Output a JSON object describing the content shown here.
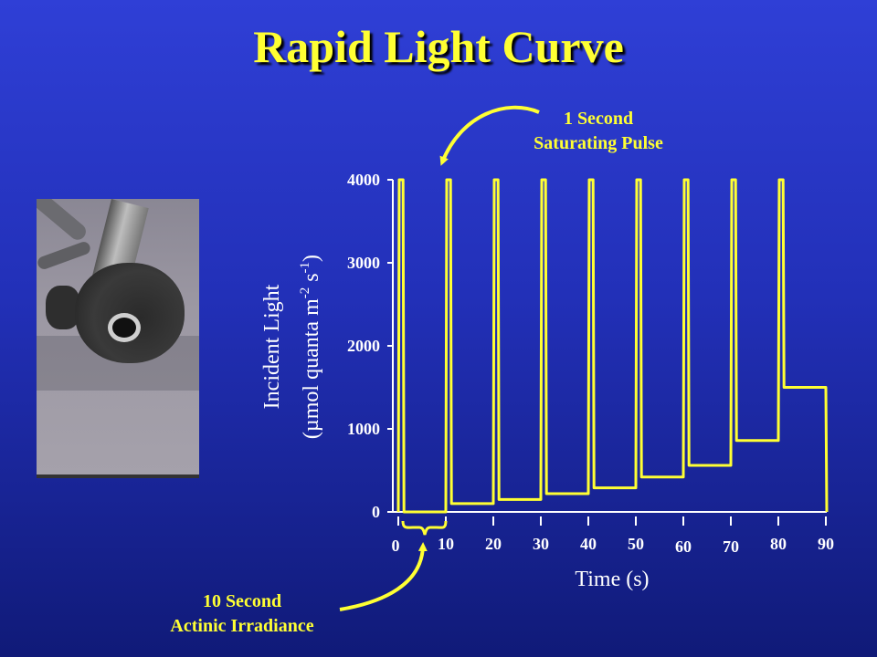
{
  "slide": {
    "title": "Rapid Light Curve",
    "photo_alt": "photo"
  },
  "chart_data": {
    "type": "line",
    "title": "",
    "xlabel": "Time (s)",
    "ylabel_line1": "Incident Light",
    "ylabel_line2": "(µmol quanta m",
    "ylabel_sup1": "-2",
    "ylabel_mid": " s",
    "ylabel_sup2": "-1",
    "ylabel_end": ")",
    "xlim": [
      0,
      90
    ],
    "ylim": [
      0,
      4000
    ],
    "y_ticks": [
      0,
      1000,
      2000,
      3000,
      4000
    ],
    "y_tick_labels": [
      "0",
      "1000",
      "2000",
      "3000",
      "4000"
    ],
    "x_tick_labels": [
      "0",
      "10",
      "20",
      "30",
      "40",
      "50",
      "60",
      "70",
      "80",
      "90"
    ],
    "series": [
      {
        "color": "#ffff33",
        "x": [
          0,
          0.2,
          1,
          1.2,
          10,
          10.2,
          11,
          11.2,
          20,
          20.2,
          21,
          21.2,
          30,
          30.2,
          31,
          31.2,
          40,
          40.2,
          41,
          41.2,
          50,
          50.2,
          51,
          51.2,
          60,
          60.2,
          61,
          61.2,
          70,
          70.2,
          71,
          71.2,
          80,
          80.2,
          81,
          81.2,
          90,
          90.2
        ],
        "y": [
          0,
          4000,
          4000,
          0,
          0,
          4000,
          4000,
          100,
          100,
          4000,
          4000,
          150,
          150,
          4000,
          4000,
          220,
          220,
          4000,
          4000,
          290,
          290,
          4000,
          4000,
          420,
          420,
          4000,
          4000,
          560,
          560,
          4000,
          4000,
          860,
          860,
          4000,
          4000,
          1500,
          1500,
          0
        ]
      }
    ],
    "annotations": [
      {
        "line1": "1 Second",
        "line2": "Saturating Pulse"
      },
      {
        "line1": "10 Second",
        "line2": "Actinic Irradiance"
      }
    ],
    "grid": false,
    "legend": "none"
  }
}
